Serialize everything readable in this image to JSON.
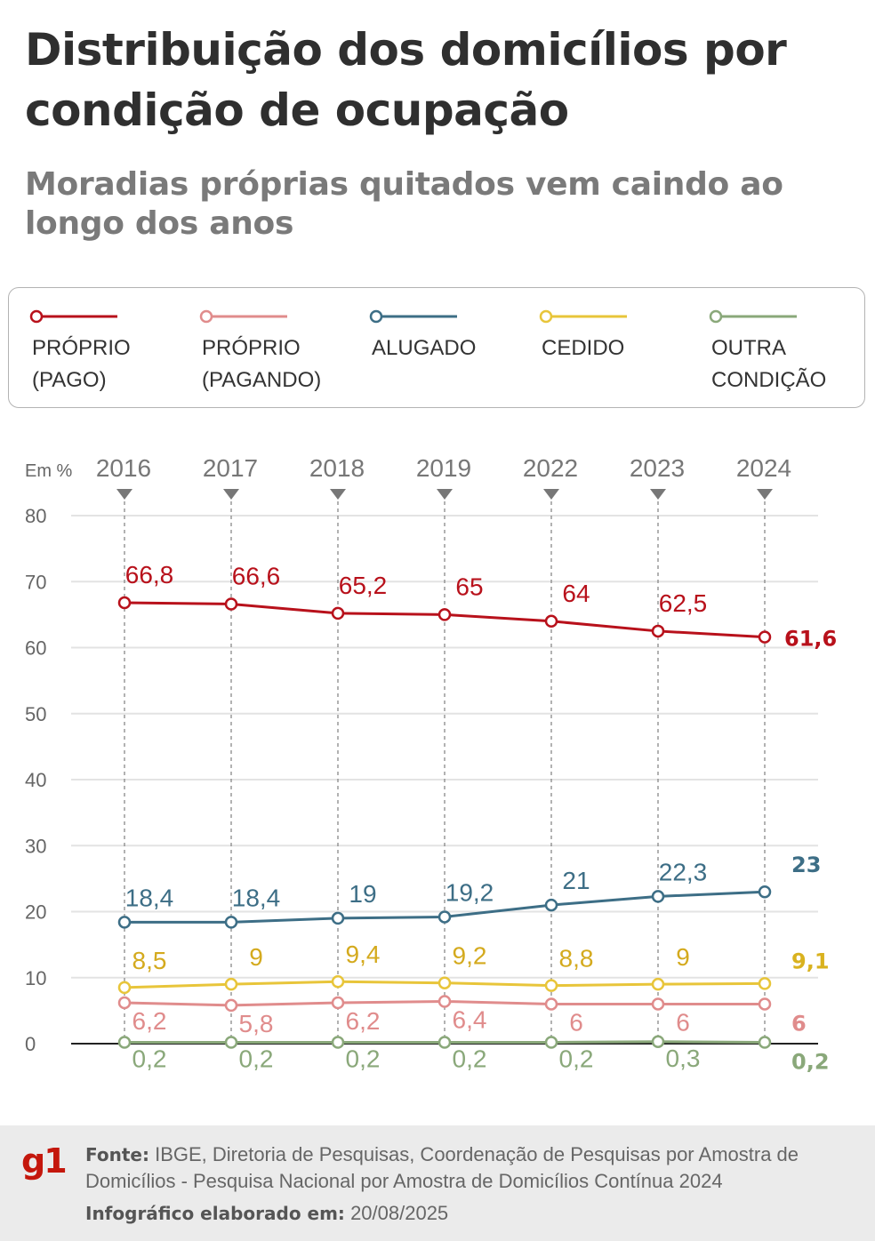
{
  "title": "Distribuição dos domicílios por condição de ocupação",
  "subtitle": "Moradias próprias quitados vem caindo ao longo dos anos",
  "legend": [
    {
      "label": "PRÓPRIO\n(PAGO)",
      "color": "#b8111b"
    },
    {
      "label": "PRÓPRIO\n(PAGANDO)",
      "color": "#e08c8c"
    },
    {
      "label": "ALUGADO",
      "color": "#3d6e86"
    },
    {
      "label": "CEDIDO",
      "color": "#e8c53a"
    },
    {
      "label": "OUTRA\nCONDIÇÃO",
      "color": "#8aa87a"
    }
  ],
  "chart_data": {
    "type": "line",
    "ylabel": "Em %",
    "ylim": [
      0,
      80
    ],
    "yticks": [
      "0",
      "10",
      "20",
      "30",
      "40",
      "50",
      "60",
      "70",
      "80"
    ],
    "grid": true,
    "categories": [
      "2016",
      "2017",
      "2018",
      "2019",
      "2022",
      "2023",
      "2024"
    ],
    "series": [
      {
        "name": "PRÓPRIO (PAGO)",
        "color": "#b8111b",
        "values": [
          66.8,
          66.6,
          65.2,
          65,
          64,
          62.5,
          61.6
        ],
        "labels": [
          "66,8",
          "66,6",
          "65,2",
          "65",
          "64",
          "62,5",
          "61,6"
        ]
      },
      {
        "name": "PRÓPRIO (PAGANDO)",
        "color": "#e08c8c",
        "values": [
          6.2,
          5.8,
          6.2,
          6.4,
          6,
          6,
          6
        ],
        "labels": [
          "6,2",
          "5,8",
          "6,2",
          "6,4",
          "6",
          "6",
          "6"
        ]
      },
      {
        "name": "ALUGADO",
        "color": "#3d6e86",
        "values": [
          18.4,
          18.4,
          19,
          19.2,
          21,
          22.3,
          23
        ],
        "labels": [
          "18,4",
          "18,4",
          "19",
          "19,2",
          "21",
          "22,3",
          "23"
        ]
      },
      {
        "name": "CEDIDO",
        "color": "#e8c53a",
        "values": [
          8.5,
          9,
          9.4,
          9.2,
          8.8,
          9,
          9.1
        ],
        "labels": [
          "8,5",
          "9",
          "9,4",
          "9,2",
          "8,8",
          "9",
          "9,1"
        ]
      },
      {
        "name": "OUTRA CONDIÇÃO",
        "color": "#8aa87a",
        "values": [
          0.2,
          0.2,
          0.2,
          0.2,
          0.2,
          0.3,
          0.2
        ],
        "labels": [
          "0,2",
          "0,2",
          "0,2",
          "0,2",
          "0,2",
          "0,3",
          "0,2"
        ]
      }
    ]
  },
  "footer": {
    "logo": "g1",
    "source_label": "Fonte:",
    "source_text": "IBGE, Diretoria de Pesquisas, Coordenação de Pesquisas por Amostra de Domicílios - Pesquisa Nacional por Amostra de Domicílios Contínua 2024",
    "made_label": "Infográfico elaborado em:",
    "made_date": "20/08/2025"
  }
}
